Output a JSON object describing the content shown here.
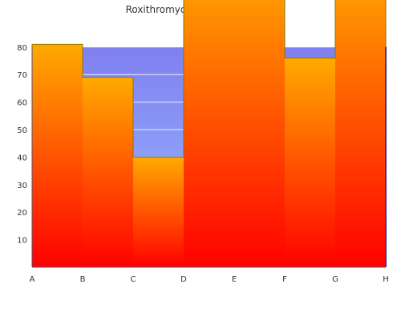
{
  "chart_data": {
    "type": "area",
    "title": "Roxithromycin popularity, ages",
    "xlabel": "",
    "ylabel": "",
    "categories": [
      "A",
      "B",
      "C",
      "D",
      "E",
      "F",
      "G",
      "H"
    ],
    "y_ticks": [
      10,
      20,
      30,
      40,
      50,
      60,
      70,
      80
    ],
    "ylim": [
      0,
      80
    ],
    "grid": true,
    "step_series": {
      "name": "",
      "values": [
        81,
        69,
        40,
        110,
        110,
        76,
        110
      ],
      "fill_gradient": [
        "#ff0000",
        "#ffaa00"
      ],
      "stroke": "#8b7400"
    },
    "background_band": {
      "top_value": 80,
      "fill_gradient": [
        "#99bbff",
        "#8080f0"
      ]
    }
  }
}
